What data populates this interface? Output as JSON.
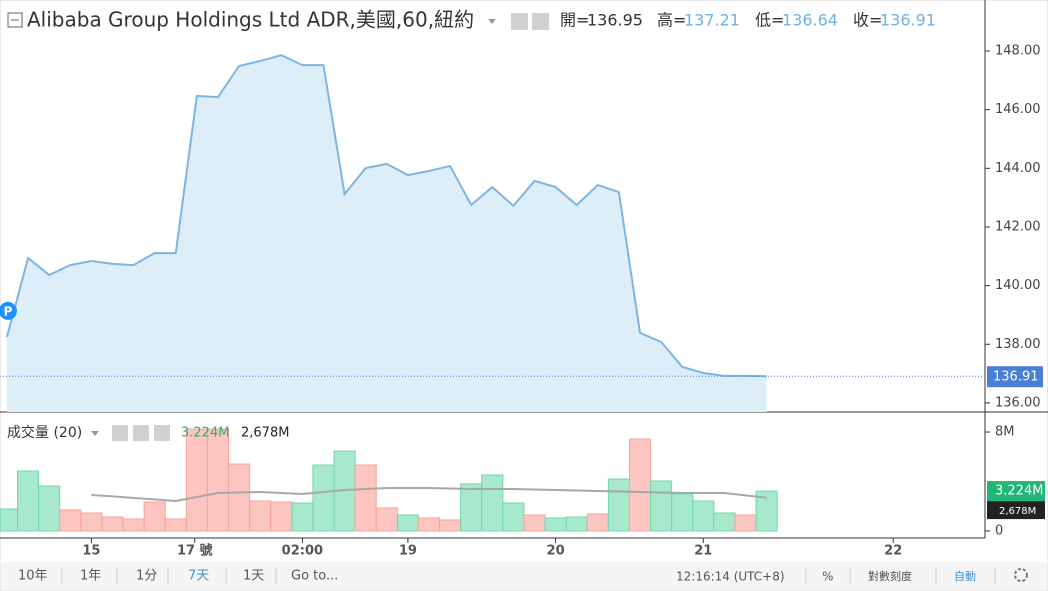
{
  "header": {
    "title": "Alibaba Group Holdings Ltd ADR,美國,60,紐約",
    "ohlc": [
      {
        "label": "開=",
        "value": "136.95",
        "color": "#333333"
      },
      {
        "label": "高=",
        "value": "137.21",
        "color": "#6fb1e0"
      },
      {
        "label": "低=",
        "value": "136.64",
        "color": "#6fb1e0"
      },
      {
        "label": "收=",
        "value": "136.91",
        "color": "#6fb1e0"
      }
    ]
  },
  "chart_data": [
    {
      "type": "area",
      "marker": "P",
      "color": "#7cb5e5",
      "fill": "#deeef9",
      "tag_color": "#4a7fd6",
      "x": [
        0,
        1,
        2,
        3,
        4,
        5,
        6,
        7,
        8,
        9,
        10,
        11,
        12,
        13,
        14,
        15,
        16,
        17,
        18,
        19,
        20,
        21,
        22,
        23,
        24,
        25,
        26,
        27,
        28,
        29,
        30,
        31,
        32,
        33,
        34,
        35,
        36
      ],
      "values": [
        138.25,
        140.94,
        140.36,
        140.7,
        140.84,
        140.74,
        140.7,
        141.11,
        141.11,
        146.47,
        146.43,
        147.49,
        147.66,
        147.86,
        147.52,
        147.52,
        143.12,
        144.01,
        144.15,
        143.77,
        143.91,
        144.08,
        142.75,
        143.36,
        142.72,
        143.57,
        143.36,
        142.75,
        143.43,
        143.19,
        138.39,
        138.08,
        137.23,
        137.02,
        136.92,
        136.92,
        136.91
      ],
      "last_value": 136.91,
      "xlim": [
        -0.33,
        46.35
      ],
      "xticks": [
        {
          "value": 4,
          "label": "15"
        },
        {
          "value": 8.9,
          "label": "17 號"
        },
        {
          "value": 14,
          "label": "02:00"
        },
        {
          "value": 19,
          "label": "19"
        },
        {
          "value": 26,
          "label": "20"
        },
        {
          "value": 33,
          "label": "21"
        },
        {
          "value": 42,
          "label": "22"
        }
      ],
      "ylim": [
        135.69,
        149.74
      ],
      "yticks": [
        {
          "value": 136,
          "label": "136.00"
        },
        {
          "value": 138,
          "label": "138.00"
        },
        {
          "value": 140,
          "label": "140.00"
        },
        {
          "value": 142,
          "label": "142.00"
        },
        {
          "value": 144,
          "label": "144.00"
        },
        {
          "value": 146,
          "label": "146.00"
        },
        {
          "value": 148,
          "label": "148.00"
        }
      ]
    },
    {
      "type": "bar",
      "title": "成交量 (20)",
      "legend_values": [
        {
          "value": 3.224,
          "label": "3.224M",
          "color": "#22b573"
        },
        {
          "value": 2.678,
          "label": "2,678M",
          "color": "#222222"
        }
      ],
      "xlim": [
        -0.33,
        46.35
      ],
      "ylim": [
        -0.57,
        9.62
      ],
      "yticks": [
        {
          "value": 0,
          "label": "0"
        },
        {
          "value": 8,
          "label": "8M"
        }
      ],
      "series": [
        {
          "type": "bar",
          "x": [
            0,
            1,
            2,
            3,
            4,
            5,
            6,
            7,
            8,
            9,
            10,
            11,
            12,
            13,
            14,
            15,
            16,
            17,
            18,
            19,
            20,
            21,
            22,
            23,
            24,
            25,
            26,
            27,
            28,
            29,
            30,
            31,
            32,
            33,
            34,
            35,
            36
          ],
          "values": [
            1.78,
            4.85,
            3.64,
            1.7,
            1.45,
            1.13,
            0.97,
            2.34,
            0.97,
            8.24,
            8.24,
            5.41,
            2.42,
            2.34,
            2.26,
            5.33,
            6.46,
            5.33,
            1.86,
            1.29,
            1.05,
            0.89,
            3.8,
            4.53,
            2.26,
            1.29,
            1.05,
            1.13,
            1.37,
            4.2,
            7.43,
            4.04,
            2.99,
            2.42,
            1.45,
            1.29,
            3.224
          ],
          "colors": [
            "#a6e9cd",
            "#a6e9cd",
            "#a6e9cd",
            "#fcc5bf",
            "#fcc5bf",
            "#fcc5bf",
            "#fcc5bf",
            "#fcc5bf",
            "#fcc5bf",
            "#fcc5bf",
            "#fcc5bf",
            "#fcc5bf",
            "#fcc5bf",
            "#fcc5bf",
            "#a6e9cd",
            "#a6e9cd",
            "#a6e9cd",
            "#fcc5bf",
            "#fcc5bf",
            "#a6e9cd",
            "#fcc5bf",
            "#fcc5bf",
            "#a6e9cd",
            "#a6e9cd",
            "#a6e9cd",
            "#fcc5bf",
            "#a6e9cd",
            "#a6e9cd",
            "#fcc5bf",
            "#a6e9cd",
            "#fcc5bf",
            "#a6e9cd",
            "#a6e9cd",
            "#a6e9cd",
            "#a6e9cd",
            "#fcc5bf",
            "#a6e9cd"
          ]
        },
        {
          "type": "line",
          "color": "#a8a8a8",
          "x": [
            0,
            1,
            2,
            3,
            4,
            5,
            6,
            7,
            8,
            9,
            10,
            11,
            12,
            13,
            14,
            15,
            16,
            17,
            18,
            19,
            20,
            21,
            22,
            23,
            24,
            25,
            26,
            27,
            28,
            29,
            30,
            31,
            32,
            33,
            34,
            35,
            36
          ],
          "values": [
            null,
            null,
            null,
            null,
            2.91,
            2.8,
            2.67,
            2.55,
            2.42,
            2.75,
            3.07,
            3.11,
            3.15,
            3.07,
            2.99,
            3.15,
            3.31,
            3.39,
            3.47,
            3.47,
            3.47,
            3.43,
            3.39,
            3.39,
            3.39,
            3.35,
            3.31,
            3.27,
            3.23,
            3.19,
            3.15,
            3.11,
            3.07,
            3.07,
            3.07,
            2.88,
            2.678
          ]
        }
      ]
    }
  ],
  "toolbar": {
    "ranges": [
      "10年",
      "1年",
      "1分",
      "7天",
      "1天"
    ],
    "goto": "Go to...",
    "time": "12:16:14 (UTC+8)",
    "percent": "%",
    "log": "對數刻度",
    "auto": "自動"
  }
}
